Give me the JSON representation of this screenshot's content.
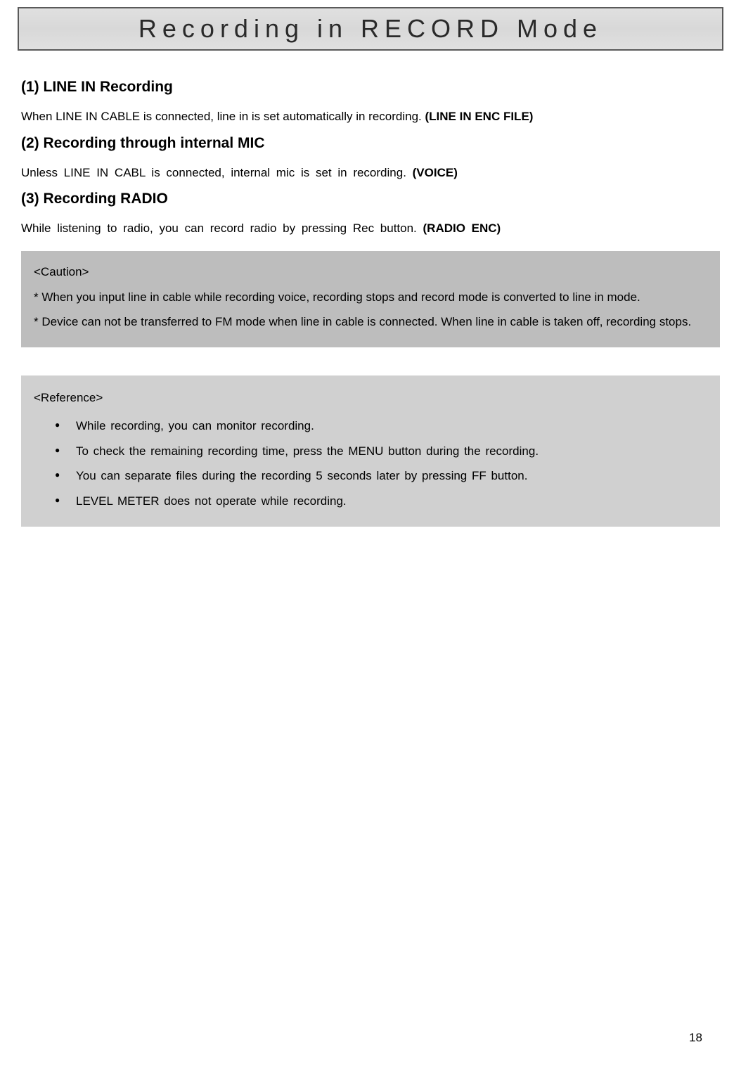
{
  "title": "Recording in RECORD Mode",
  "sections": [
    {
      "heading": "(1) LINE IN Recording",
      "text_pre": "When LINE IN CABLE is connected, line in is set automatically in recording. ",
      "text_bold": "(LINE IN ENC FILE)",
      "justify": true
    },
    {
      "heading": "(2) Recording through internal MIC",
      "text_pre": "Unless LINE IN CABL is connected, internal mic is set in recording. ",
      "text_bold": "(VOICE)",
      "justify": false
    },
    {
      "heading": "(3) Recording RADIO",
      "text_pre": "While listening to radio, you can record radio by pressing Rec button. ",
      "text_bold": "(RADIO ENC)",
      "justify": false
    }
  ],
  "caution": {
    "heading": "<Caution>",
    "items": [
      "* When you input line in cable while recording voice, recording stops and record mode is converted to line in mode.",
      "* Device can not be transferred to FM mode when line in cable is connected. When line in cable is taken off, recording stops."
    ]
  },
  "reference": {
    "heading": "<Reference>",
    "items": [
      "While recording, you can monitor recording.",
      "To check the remaining recording time, press the MENU button during the recording.",
      "You can separate files during the recording 5 seconds later by pressing FF button.",
      "LEVEL METER does not operate while recording."
    ]
  },
  "page_number": "18",
  "colors": {
    "background": "#ffffff",
    "text": "#000000",
    "title_border": "#5a5a5a",
    "title_bg": "#dcdcdc",
    "caution_bg": "#bdbdbd",
    "reference_bg": "#d0d0d0"
  },
  "typography": {
    "title_fontsize": 36,
    "heading_fontsize": 21,
    "body_fontsize": 17,
    "title_letterspacing": 8
  }
}
